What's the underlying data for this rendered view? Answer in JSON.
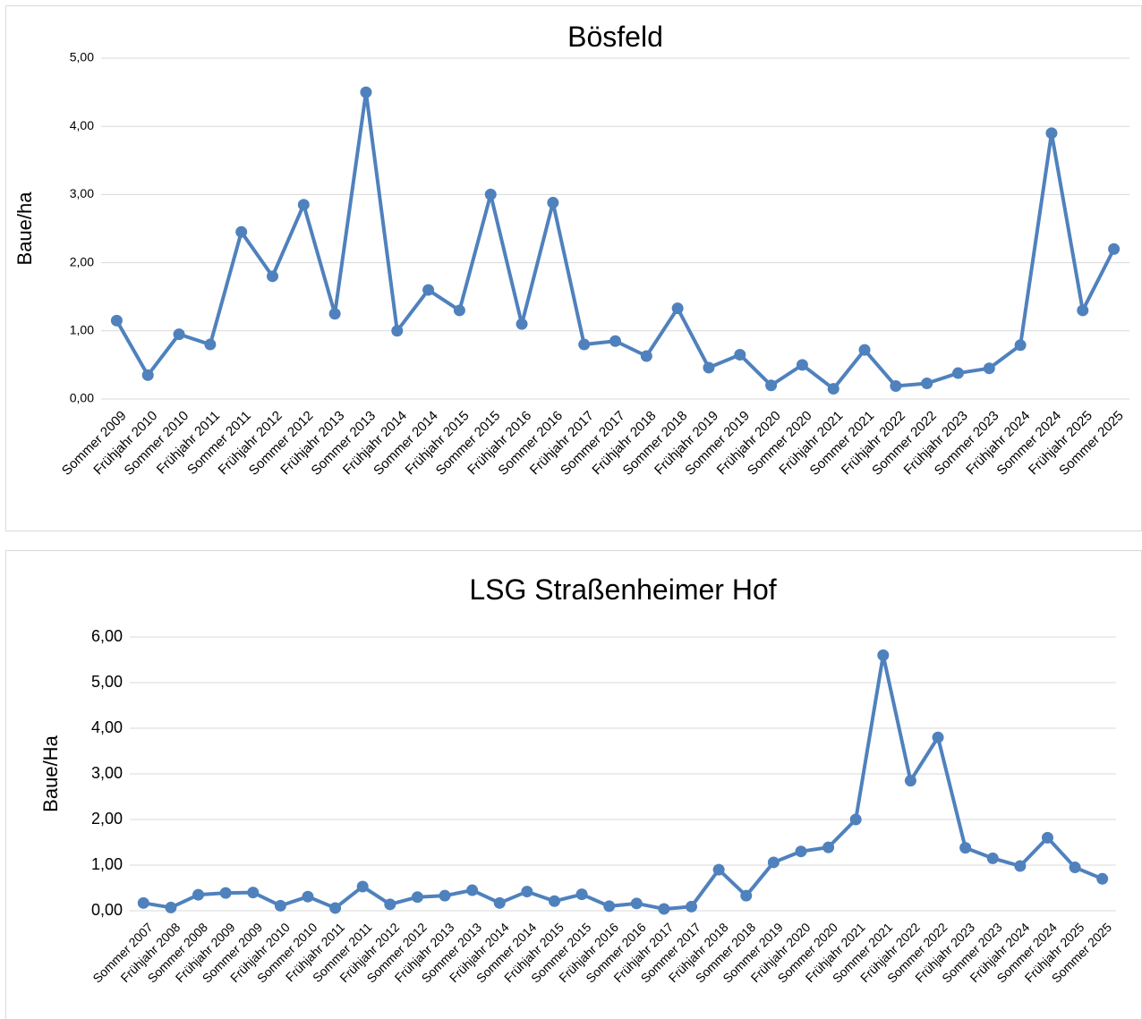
{
  "chart_data": [
    {
      "type": "line",
      "title": "Bösfeld",
      "y_label": "Baue/ha",
      "color": "#4f81bd",
      "grid": true,
      "categories": [
        "Sommer 2009",
        "Frühjahr 2010",
        "Sommer 2010",
        "Frühjahr 2011",
        "Sommer 2011",
        "Frühjahr 2012",
        "Sommer 2012",
        "Frühjahr 2013",
        "Sommer 2013",
        "Frühjahr 2014",
        "Sommer 2014",
        "Frühjahr 2015",
        "Sommer 2015",
        "Frühjahr 2016",
        "Sommer 2016",
        "Frühjahr 2017",
        "Sommer 2017",
        "Frühjahr 2018",
        "Sommer 2018",
        "Frühjahr 2019",
        "Sommer 2019",
        "Frühjahr 2020",
        "Sommer 2020",
        "Frühjahr 2021",
        "Sommer 2021",
        "Frühjahr 2022",
        "Sommer 2022",
        "Frühjahr 2023",
        "Sommer 2023",
        "Frühjahr 2024",
        "Sommer 2024",
        "Frühjahr 2025",
        "Sommer 2025"
      ],
      "values": [
        1.15,
        0.35,
        0.95,
        0.8,
        2.45,
        1.8,
        2.85,
        1.25,
        4.5,
        1.0,
        1.6,
        1.3,
        3.0,
        1.1,
        2.88,
        0.8,
        0.85,
        0.63,
        1.33,
        0.46,
        0.65,
        0.2,
        0.5,
        0.15,
        0.72,
        0.19,
        0.23,
        0.38,
        0.45,
        0.79,
        3.9,
        1.3,
        2.2
      ],
      "ylim": [
        0,
        5
      ],
      "yticks": [
        {
          "value": 0,
          "label": "0,00"
        },
        {
          "value": 1,
          "label": "1,00"
        },
        {
          "value": 2,
          "label": "2,00"
        },
        {
          "value": 3,
          "label": "3,00"
        },
        {
          "value": 4,
          "label": "4,00"
        },
        {
          "value": 5,
          "label": "5,00"
        }
      ]
    },
    {
      "type": "line",
      "title": "LSG Straßenheimer Hof",
      "y_label": "Baue/Ha",
      "color": "#4f81bd",
      "grid": true,
      "categories": [
        "Sommer 2007",
        "Frühjahr 2008",
        "Sommer 2008",
        "Frühjahr 2009",
        "Sommer 2009",
        "Frühjahr 2010",
        "Sommer 2010",
        "Frühjahr 2011",
        "Sommer 2011",
        "Frühjahr 2012",
        "Sommer 2012",
        "Frühjahr 2013",
        "Sommer 2013",
        "Frühjahr 2014",
        "Sommer 2014",
        "Frühjahr 2015",
        "Sommer 2015",
        "Frühjahr 2016",
        "Sommer 2016",
        "Frühjahr 2017",
        "Sommer 2017",
        "Frühjahr 2018",
        "Sommer 2018",
        "Sommer 2019",
        "Frühjahr 2020",
        "Sommer 2020",
        "Frühjahr 2021",
        "Sommer 2021",
        "Frühjahr 2022",
        "Sommer 2022",
        "Frühjahr 2023",
        "Sommer 2023",
        "Frühjahr 2024",
        "Sommer 2024",
        "Frühjahr 2025",
        "Sommer 2025"
      ],
      "values": [
        0.17,
        0.07,
        0.35,
        0.39,
        0.4,
        0.11,
        0.31,
        0.06,
        0.53,
        0.14,
        0.3,
        0.33,
        0.45,
        0.17,
        0.42,
        0.21,
        0.36,
        0.1,
        0.16,
        0.04,
        0.09,
        0.9,
        0.33,
        1.06,
        1.3,
        1.39,
        2.0,
        5.6,
        2.85,
        3.8,
        1.38,
        1.15,
        0.98,
        1.6,
        0.95,
        0.7
      ],
      "ylim": [
        0,
        6
      ],
      "yticks": [
        {
          "value": 0,
          "label": "0,00"
        },
        {
          "value": 1,
          "label": "1,00"
        },
        {
          "value": 2,
          "label": "2,00"
        },
        {
          "value": 3,
          "label": "3,00"
        },
        {
          "value": 4,
          "label": "4,00"
        },
        {
          "value": 5,
          "label": "5,00"
        },
        {
          "value": 6,
          "label": "6,00"
        }
      ]
    }
  ]
}
